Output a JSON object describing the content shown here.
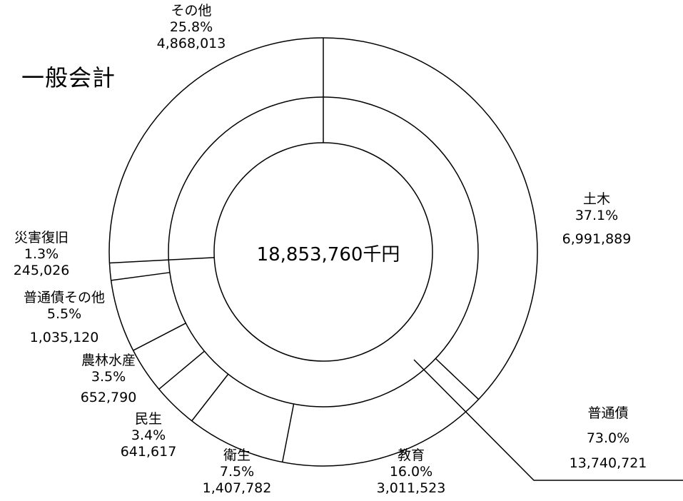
{
  "title": "一般会計",
  "total_label": "18,853,760千円",
  "chart_data": {
    "type": "pie",
    "title": "一般会計",
    "center_label": "18,853,760千円",
    "total": 18853760,
    "slices": [
      {
        "name": "土木",
        "percent_text": "37.1%",
        "percent": 37.1,
        "value_text": "6,991,889",
        "value": 6991889
      },
      {
        "name": "教育",
        "percent_text": "16.0%",
        "percent": 16.0,
        "value_text": "3,011,523",
        "value": 3011523
      },
      {
        "name": "衛生",
        "percent_text": "7.5%",
        "percent": 7.5,
        "value_text": "1,407,782",
        "value": 1407782
      },
      {
        "name": "民生",
        "percent_text": "3.4%",
        "percent": 3.4,
        "value_text": "641,617",
        "value": 641617
      },
      {
        "name": "農林水産",
        "percent_text": "3.5%",
        "percent": 3.5,
        "value_text": "652,790",
        "value": 652790
      },
      {
        "name": "普通債その他",
        "percent_text": "5.5%",
        "percent": 5.5,
        "value_text": "1,035,120",
        "value": 1035120
      },
      {
        "name": "災害復旧",
        "percent_text": "1.3%",
        "percent": 1.3,
        "value_text": "245,026",
        "value": 245026
      },
      {
        "name": "その他",
        "percent_text": "25.8%",
        "percent": 25.8,
        "value_text": "4,868,013",
        "value": 4868013
      }
    ],
    "group": {
      "name": "普通債",
      "percent_text": "73.0%",
      "percent": 73.0,
      "value_text": "13,740,721",
      "value": 13740721
    }
  }
}
